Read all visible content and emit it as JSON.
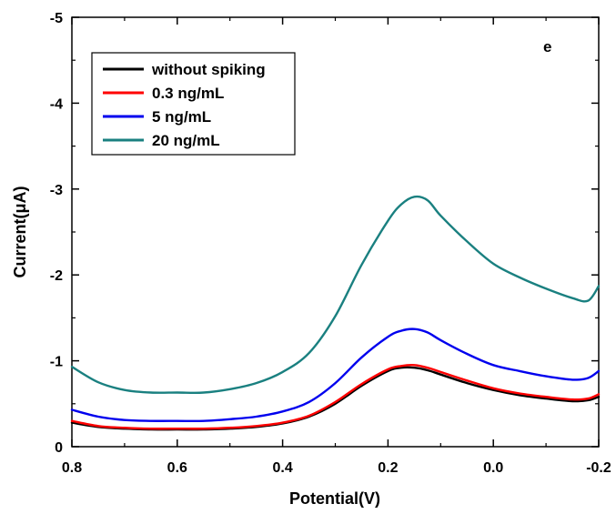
{
  "chart_data": {
    "type": "line",
    "xlabel": "Potential(V)",
    "ylabel": "Current(μA)",
    "panel_label": "e",
    "xlim": [
      0.8,
      -0.2
    ],
    "ylim": [
      0,
      -5
    ],
    "x_reversed": true,
    "y_reversed": true,
    "xticks": [
      "0.8",
      "0.6",
      "0.4",
      "0.2",
      "0.0",
      "-0.2"
    ],
    "xtick_values": [
      0.8,
      0.6,
      0.4,
      0.2,
      0.0,
      -0.2
    ],
    "yticks": [
      "0",
      "-1",
      "-2",
      "-3",
      "-4",
      "-5"
    ],
    "ytick_values": [
      0,
      -1,
      -2,
      -3,
      -4,
      -5
    ],
    "grid": false,
    "legend_position": "top-left",
    "x": [
      0.8,
      0.75,
      0.7,
      0.65,
      0.6,
      0.55,
      0.5,
      0.45,
      0.4,
      0.35,
      0.3,
      0.25,
      0.2,
      0.175,
      0.15,
      0.125,
      0.1,
      0.05,
      0.0,
      -0.05,
      -0.1,
      -0.15,
      -0.18,
      -0.2
    ],
    "series": [
      {
        "name": "without spiking",
        "color": "#000000",
        "values": [
          -0.28,
          -0.23,
          -0.21,
          -0.2,
          -0.2,
          -0.2,
          -0.21,
          -0.23,
          -0.27,
          -0.35,
          -0.5,
          -0.71,
          -0.88,
          -0.92,
          -0.92,
          -0.89,
          -0.84,
          -0.74,
          -0.66,
          -0.6,
          -0.56,
          -0.53,
          -0.54,
          -0.58
        ]
      },
      {
        "name": "0.3 ng/mL",
        "color": "#ff0000",
        "values": [
          -0.3,
          -0.24,
          -0.22,
          -0.21,
          -0.21,
          -0.21,
          -0.22,
          -0.24,
          -0.28,
          -0.36,
          -0.52,
          -0.73,
          -0.9,
          -0.94,
          -0.95,
          -0.92,
          -0.87,
          -0.77,
          -0.68,
          -0.62,
          -0.58,
          -0.55,
          -0.56,
          -0.61
        ]
      },
      {
        "name": "5 ng/mL",
        "color": "#0000ee",
        "values": [
          -0.43,
          -0.35,
          -0.31,
          -0.3,
          -0.3,
          -0.3,
          -0.32,
          -0.35,
          -0.41,
          -0.52,
          -0.74,
          -1.04,
          -1.28,
          -1.35,
          -1.37,
          -1.33,
          -1.24,
          -1.08,
          -0.95,
          -0.88,
          -0.82,
          -0.78,
          -0.8,
          -0.88
        ]
      },
      {
        "name": "20 ng/mL",
        "color": "#1a8080",
        "values": [
          -0.93,
          -0.75,
          -0.66,
          -0.63,
          -0.63,
          -0.63,
          -0.67,
          -0.74,
          -0.87,
          -1.09,
          -1.52,
          -2.12,
          -2.63,
          -2.82,
          -2.91,
          -2.87,
          -2.69,
          -2.39,
          -2.13,
          -1.97,
          -1.84,
          -1.73,
          -1.7,
          -1.87
        ]
      }
    ]
  }
}
